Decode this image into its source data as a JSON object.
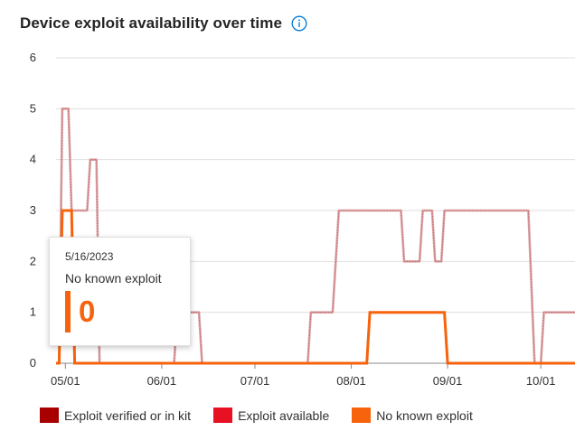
{
  "header": {
    "title": "Device exploit availability over time"
  },
  "icons": {
    "info": "info-icon"
  },
  "colors": {
    "exploit_verified": "#a80000",
    "exploit_available": "#e81123",
    "no_known_exploit": "#f7630c",
    "series_faded": "#d9a3a5",
    "gridline": "#e1dfdd"
  },
  "tooltip": {
    "date": "5/16/2023",
    "series": "No known exploit",
    "value": "0"
  },
  "legend": [
    {
      "label": "Exploit verified or in kit",
      "color": "#a80000"
    },
    {
      "label": "Exploit available",
      "color": "#e81123"
    },
    {
      "label": "No known exploit",
      "color": "#f7630c"
    }
  ],
  "chart_data": {
    "type": "line",
    "title": "Device exploit availability over time",
    "y_ticks": [
      "0",
      "1",
      "2",
      "3",
      "4",
      "5",
      "6"
    ],
    "ylim": [
      0,
      6
    ],
    "x_ticks": [
      {
        "label": "05/01",
        "date": "2023-05-01"
      },
      {
        "label": "06/01",
        "date": "2023-06-01"
      },
      {
        "label": "07/01",
        "date": "2023-07-01"
      },
      {
        "label": "08/01",
        "date": "2023-08-01"
      },
      {
        "label": "09/01",
        "date": "2023-09-01"
      },
      {
        "label": "10/01",
        "date": "2023-10-01"
      }
    ],
    "xlim": [
      "2023-04-28",
      "2023-10-12"
    ],
    "grid": true,
    "legend_position": "bottom",
    "series": [
      {
        "name": "Exploit verified or in kit",
        "color": "#a80000",
        "faded": true,
        "points": [
          [
            "2023-04-28",
            0
          ],
          [
            "2023-04-29",
            0
          ],
          [
            "2023-04-30",
            5
          ],
          [
            "2023-05-02",
            5
          ],
          [
            "2023-05-03",
            3
          ],
          [
            "2023-05-08",
            3
          ],
          [
            "2023-05-09",
            4
          ],
          [
            "2023-05-11",
            4
          ],
          [
            "2023-05-12",
            0
          ],
          [
            "2023-06-05",
            0
          ],
          [
            "2023-06-06",
            1
          ],
          [
            "2023-06-13",
            1
          ],
          [
            "2023-06-14",
            0
          ],
          [
            "2023-07-18",
            0
          ],
          [
            "2023-07-19",
            1
          ],
          [
            "2023-07-26",
            1
          ],
          [
            "2023-07-28",
            3
          ],
          [
            "2023-08-17",
            3
          ],
          [
            "2023-08-18",
            2
          ],
          [
            "2023-08-23",
            2
          ],
          [
            "2023-08-24",
            3
          ],
          [
            "2023-08-27",
            3
          ],
          [
            "2023-08-28",
            2
          ],
          [
            "2023-08-30",
            2
          ],
          [
            "2023-08-31",
            3
          ],
          [
            "2023-09-27",
            3
          ],
          [
            "2023-09-29",
            0
          ],
          [
            "2023-10-01",
            0
          ],
          [
            "2023-10-02",
            1
          ],
          [
            "2023-10-12",
            1
          ]
        ]
      },
      {
        "name": "No known exploit",
        "color": "#f7630c",
        "faded": false,
        "points": [
          [
            "2023-04-28",
            0
          ],
          [
            "2023-04-29",
            0
          ],
          [
            "2023-04-30",
            3
          ],
          [
            "2023-05-03",
            3
          ],
          [
            "2023-05-04",
            0
          ],
          [
            "2023-08-06",
            0
          ],
          [
            "2023-08-07",
            1
          ],
          [
            "2023-08-31",
            1
          ],
          [
            "2023-09-01",
            0
          ],
          [
            "2023-10-12",
            0
          ]
        ]
      }
    ]
  }
}
